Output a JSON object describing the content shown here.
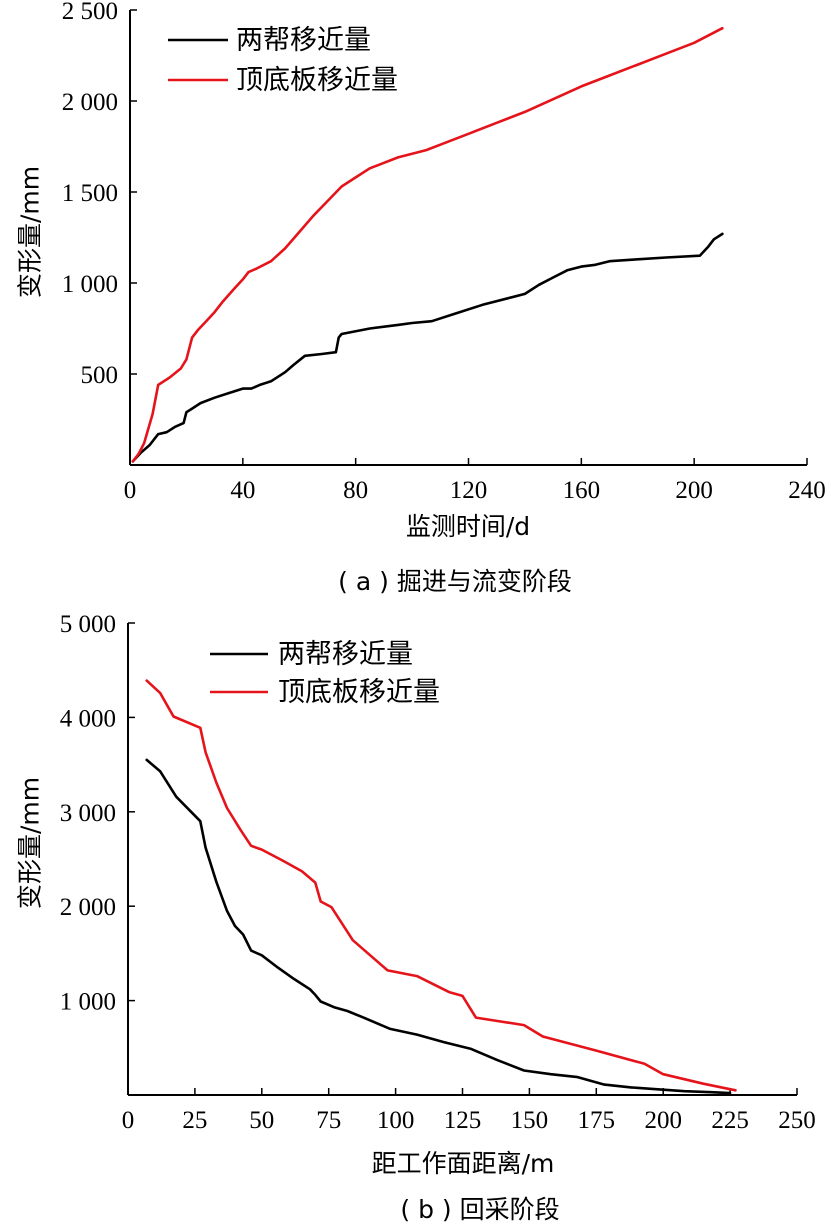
{
  "chart_data": [
    {
      "type": "line",
      "caption": "( a ) 掘进与流变阶段",
      "xlabel": "监测时间/d",
      "ylabel": "变形量/mm",
      "xlim": [
        0,
        240
      ],
      "ylim": [
        0,
        2500
      ],
      "xticks": [
        0,
        40,
        80,
        120,
        160,
        200,
        240
      ],
      "xtick_labels": [
        "0",
        "40",
        "80",
        "120",
        "160",
        "200",
        "240"
      ],
      "yticks": [
        500,
        1000,
        1500,
        2000,
        2500
      ],
      "ytick_labels": [
        "500",
        "1 000",
        "1 500",
        "2 000",
        "2 500"
      ],
      "legend_position": "top-left",
      "series": [
        {
          "name": "两帮移近量",
          "color": "#000000",
          "x": [
            1,
            4,
            7,
            10,
            13,
            16,
            19,
            20,
            22,
            25,
            30,
            35,
            40,
            43,
            46,
            50,
            55,
            58,
            62,
            68,
            73,
            74,
            75,
            85,
            95,
            100,
            107,
            115,
            125,
            140,
            145,
            150,
            155,
            160,
            165,
            170,
            180,
            190,
            202,
            205,
            207,
            210
          ],
          "y": [
            20,
            70,
            110,
            170,
            180,
            210,
            230,
            290,
            310,
            340,
            370,
            395,
            420,
            420,
            440,
            460,
            510,
            550,
            600,
            610,
            620,
            700,
            720,
            750,
            770,
            780,
            790,
            830,
            880,
            940,
            990,
            1030,
            1070,
            1090,
            1100,
            1120,
            1130,
            1140,
            1150,
            1200,
            1240,
            1270
          ]
        },
        {
          "name": "顶底板移近量",
          "color": "#e5141b",
          "x": [
            1,
            3,
            5,
            8,
            10,
            14,
            18,
            20,
            22,
            24,
            27,
            30,
            33,
            37,
            40,
            42,
            45,
            50,
            55,
            60,
            65,
            70,
            75,
            80,
            85,
            95,
            105,
            110,
            120,
            130,
            140,
            150,
            160,
            170,
            180,
            190,
            200,
            210
          ],
          "y": [
            20,
            60,
            120,
            280,
            440,
            480,
            530,
            580,
            700,
            740,
            790,
            840,
            900,
            970,
            1020,
            1060,
            1080,
            1120,
            1190,
            1280,
            1370,
            1450,
            1530,
            1580,
            1630,
            1690,
            1730,
            1760,
            1820,
            1880,
            1940,
            2010,
            2080,
            2140,
            2200,
            2260,
            2320,
            2400
          ]
        }
      ]
    },
    {
      "type": "line",
      "caption": "( b ) 回采阶段",
      "xlabel": "距工作面距离/m",
      "ylabel": "变形量/mm",
      "xlim": [
        0,
        250
      ],
      "ylim": [
        0,
        5000
      ],
      "xticks": [
        0,
        25,
        50,
        75,
        100,
        125,
        150,
        175,
        200,
        225,
        250
      ],
      "xtick_labels": [
        "0",
        "25",
        "50",
        "75",
        "100",
        "125",
        "150",
        "175",
        "200",
        "225",
        "250"
      ],
      "yticks": [
        1000,
        2000,
        3000,
        4000,
        5000
      ],
      "ytick_labels": [
        "1 000",
        "2 000",
        "3 000",
        "4 000",
        "5 000"
      ],
      "legend_position": "top-center",
      "series": [
        {
          "name": "两帮移近量",
          "color": "#000000",
          "x": [
            7,
            12,
            18,
            27,
            29,
            33,
            37,
            40,
            43,
            46,
            50,
            56,
            62,
            68,
            70,
            72,
            77,
            82,
            88,
            98,
            108,
            118,
            128,
            138,
            148,
            158,
            168,
            178,
            188,
            198,
            208,
            218,
            225
          ],
          "y": [
            3550,
            3430,
            3160,
            2900,
            2620,
            2260,
            1950,
            1790,
            1700,
            1530,
            1480,
            1350,
            1230,
            1120,
            1060,
            990,
            930,
            890,
            820,
            700,
            640,
            560,
            490,
            370,
            260,
            220,
            190,
            110,
            80,
            60,
            40,
            30,
            20
          ]
        },
        {
          "name": "顶底板移近量",
          "color": "#e5141b",
          "x": [
            7,
            12,
            17,
            27,
            29,
            33,
            37,
            42,
            46,
            50,
            58,
            65,
            70,
            72,
            76,
            84,
            97,
            108,
            120,
            125,
            130,
            148,
            155,
            175,
            193,
            200,
            215,
            227
          ],
          "y": [
            4390,
            4260,
            4010,
            3890,
            3630,
            3310,
            3040,
            2810,
            2640,
            2600,
            2480,
            2370,
            2250,
            2050,
            1990,
            1640,
            1320,
            1260,
            1090,
            1050,
            820,
            740,
            620,
            470,
            330,
            220,
            120,
            50
          ]
        }
      ]
    }
  ]
}
